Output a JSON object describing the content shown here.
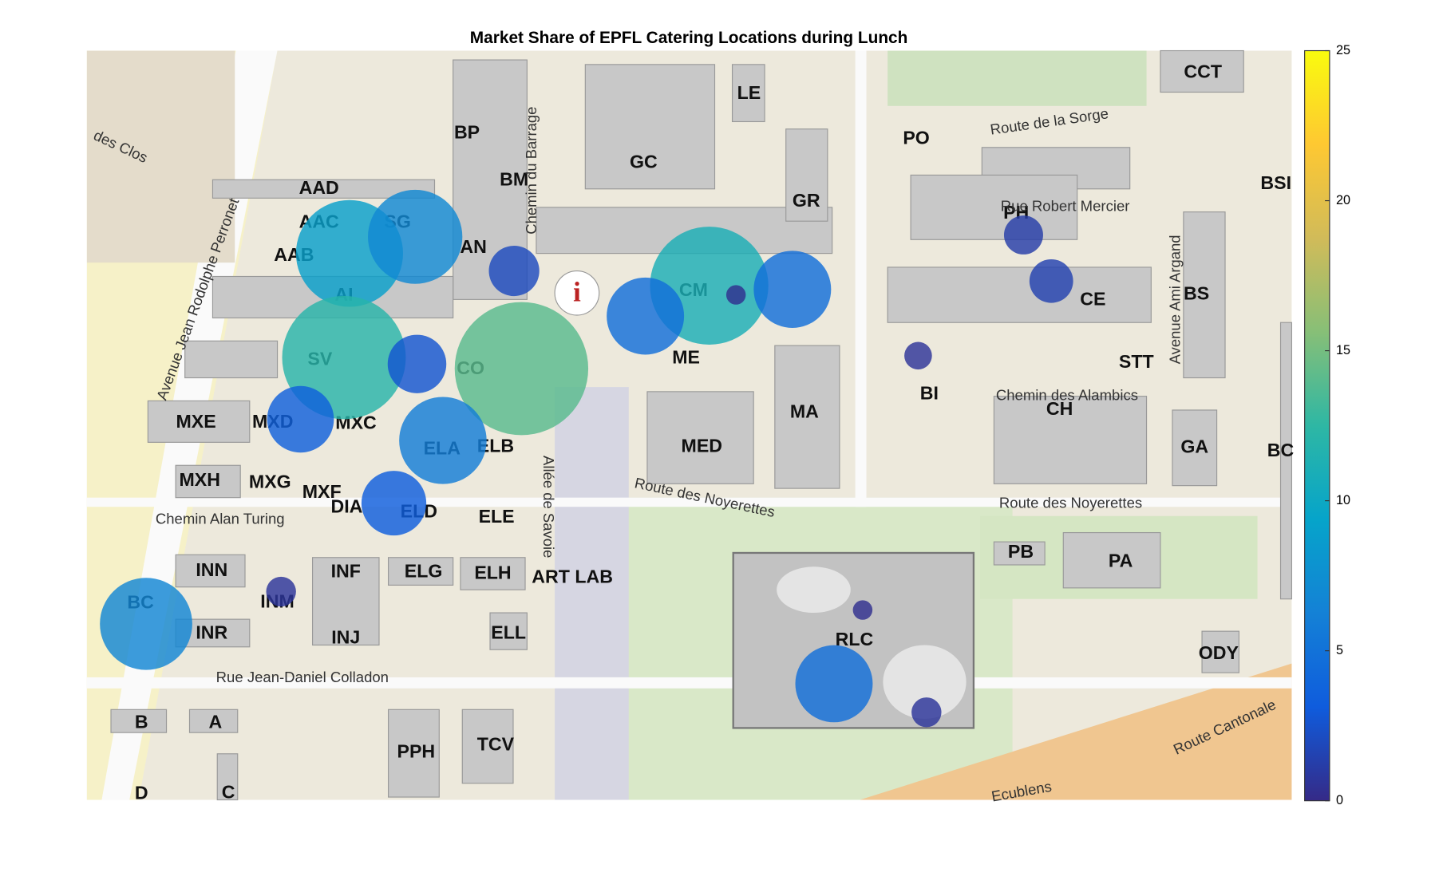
{
  "chart_data": {
    "type": "bubble",
    "title": "Market Share of EPFL Catering Locations during Lunch",
    "values": [
      9,
      7,
      2,
      12,
      2.7,
      14,
      3.5,
      6,
      3.3,
      6.7,
      0.7,
      11,
      4.7,
      4.7,
      0.3,
      1.2,
      1.5,
      0.6,
      0.3,
      4.7,
      0.7
    ],
    "clim": [
      0,
      25
    ],
    "cticks": [
      0,
      5,
      10,
      15,
      20,
      25
    ],
    "colormap": [
      "#352a87",
      "#0f5cdd",
      "#1481d6",
      "#06a4ca",
      "#2eb7a4",
      "#87bf77",
      "#d1bb59",
      "#fec832",
      "#f9fb0e"
    ]
  },
  "map": {
    "labels": [
      "BP",
      "BM",
      "GC",
      "LE",
      "GR",
      "PO",
      "CCT",
      "BSI",
      "AAD",
      "AAC",
      "SG",
      "AAB",
      "AN",
      "AI",
      "PH",
      "CE",
      "BS",
      "CM",
      "ME",
      "STT",
      "SV",
      "CO",
      "BI",
      "CH",
      "MA",
      "MXE",
      "MXD",
      "MXC",
      "ELA",
      "ELB",
      "MED",
      "GA",
      "BC",
      "MXH",
      "MXG",
      "MXF",
      "DIA",
      "ELD",
      "ELE",
      "PB",
      "PA",
      "INN",
      "INF",
      "ELG",
      "ELH",
      "ART LAB",
      "INM",
      "BC",
      "RLC",
      "INR",
      "INJ",
      "ELL",
      "ODY",
      "B",
      "A",
      "PPH",
      "TCV",
      "D",
      "C"
    ],
    "streets": [
      "Route de la Sorge",
      "Rue Robert Mercier",
      "Avenue Jean Rodolphe Perronet",
      "Chemin du Barrage",
      "Avenue Ami Argand",
      "Chemin des Alambics",
      "Route des Noyerettes",
      "Route des Noyerettes",
      "Chemin Alan Turing",
      "Allée de Savoie",
      "Rue Jean-Daniel Colladon",
      "Route Cantonale",
      "des Clos",
      "Ecublens"
    ]
  }
}
